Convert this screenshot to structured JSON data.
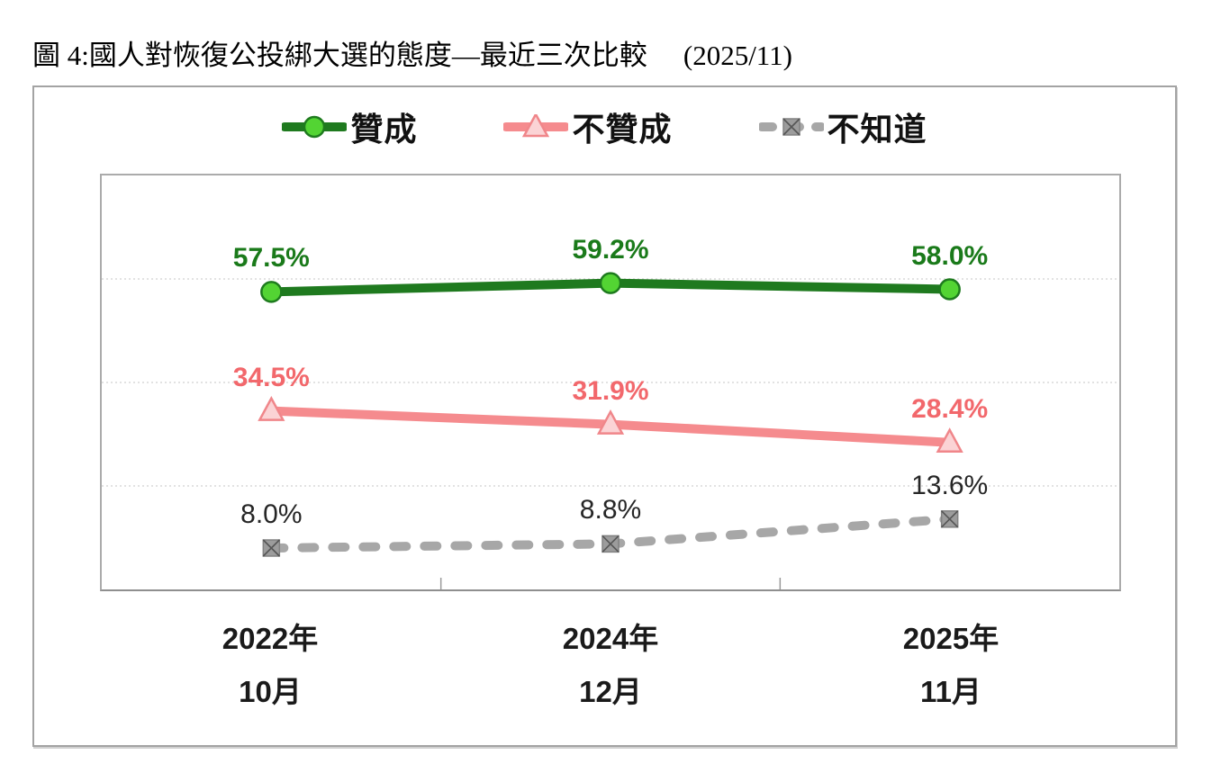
{
  "title": {
    "main": "圖 4:國人對恢復公投綁大選的態度—最近三次比較",
    "date": "(2025/11)"
  },
  "chart_data": {
    "type": "line",
    "title": "圖 4:國人對恢復公投綁大選的態度—最近三次比較 (2025/11)",
    "categories": [
      {
        "year": "2022年",
        "month": "10月"
      },
      {
        "year": "2024年",
        "month": "12月"
      },
      {
        "year": "2025年",
        "month": "11月"
      }
    ],
    "series": [
      {
        "name": "贊成",
        "values": [
          57.5,
          59.2,
          58.0
        ],
        "labels": [
          "57.5%",
          "59.2%",
          "58.0%"
        ],
        "marker": "circle",
        "dashed": false,
        "line_color": "#1f7a1f",
        "marker_fill": "#53d433",
        "marker_stroke": "#1e7b1e",
        "label_color": "#1a7a1a",
        "label_bold": true
      },
      {
        "name": "不贊成",
        "values": [
          34.5,
          31.9,
          28.4
        ],
        "labels": [
          "34.5%",
          "31.9%",
          "28.4%"
        ],
        "marker": "triangle",
        "dashed": false,
        "line_color": "#f58b8e",
        "marker_fill": "#fbd3d5",
        "marker_stroke": "#f0868a",
        "label_color": "#f2686c",
        "label_bold": true
      },
      {
        "name": "不知道",
        "values": [
          8.0,
          8.8,
          13.6
        ],
        "labels": [
          "8.0%",
          "8.8%",
          "13.6%"
        ],
        "marker": "square-x",
        "dashed": true,
        "line_color": "#a7a7a7",
        "marker_fill": "#9c9c9c",
        "marker_stroke": "#828282",
        "label_color": "#262626",
        "label_bold": false
      }
    ],
    "ylim": [
      0,
      80
    ],
    "gridlines_pct": [
      20,
      40,
      60
    ],
    "grid": true,
    "legend_position": "top-center",
    "xlabel": "",
    "ylabel": ""
  }
}
